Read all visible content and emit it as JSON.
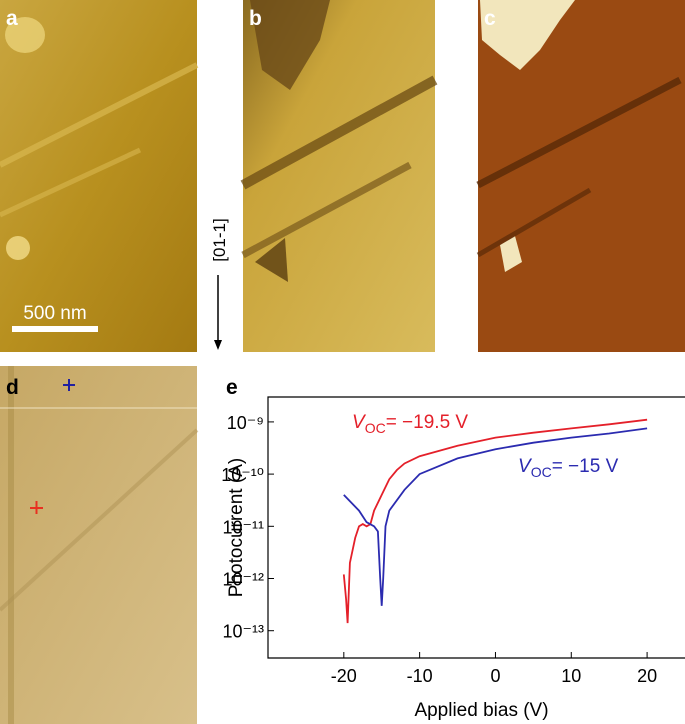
{
  "panels": {
    "labels": [
      "a",
      "b",
      "c",
      "d",
      "e"
    ],
    "scale_bar": "500 nm",
    "direction": "[01-1]"
  },
  "chart_data": {
    "type": "line",
    "xlabel": "Applied bias (V)",
    "ylabel": "Photocurrent (A)",
    "xlim": [
      -30,
      25
    ],
    "xticks": [
      -20,
      -10,
      0,
      10,
      20
    ],
    "ylim": [
      3e-14,
      3e-09
    ],
    "log_y": true,
    "yticks": [
      {
        "value": 1e-09,
        "label": "10⁻⁹"
      },
      {
        "value": 1e-10,
        "label": "10⁻¹⁰"
      },
      {
        "value": 1e-11,
        "label": "10⁻¹¹"
      },
      {
        "value": 1e-12,
        "label": "10⁻¹²"
      },
      {
        "value": 1e-13,
        "label": "10⁻¹³"
      }
    ],
    "annotations": [
      {
        "text": "V",
        "sub": "OC",
        "rest": "= −19.5 V",
        "color": "#e4202a"
      },
      {
        "text": "V",
        "sub": "OC",
        "rest": "= −15 V",
        "color": "#2b2bb0"
      }
    ],
    "series": [
      {
        "color": "#e4202a",
        "x": [
          -20,
          -19.7,
          -19.5,
          -19.2,
          -18.5,
          -18,
          -17.5,
          -17,
          -16.5,
          -16,
          -15,
          -14,
          -13,
          -12,
          -10,
          -5,
          0,
          5,
          10,
          15,
          20
        ],
        "values": [
          1.2e-12,
          4e-13,
          1.4e-13,
          2e-12,
          6e-12,
          1e-11,
          1.1e-11,
          1e-11,
          1.1e-11,
          2e-11,
          4e-11,
          8e-11,
          1.2e-10,
          1.6e-10,
          2.2e-10,
          3.5e-10,
          5e-10,
          6.2e-10,
          7.5e-10,
          9e-10,
          1.1e-09
        ]
      },
      {
        "color": "#2b2bb0",
        "x": [
          -20,
          -18,
          -17,
          -16,
          -15.5,
          -15.2,
          -15,
          -14.8,
          -14.5,
          -14,
          -12,
          -10,
          -5,
          0,
          5,
          10,
          15,
          20
        ],
        "values": [
          4e-11,
          2e-11,
          1.2e-11,
          1e-11,
          8e-12,
          1e-12,
          3e-13,
          1e-12,
          1e-11,
          2e-11,
          5e-11,
          1e-10,
          2e-10,
          3e-10,
          4e-10,
          5e-10,
          6e-10,
          7.5e-10
        ]
      }
    ]
  }
}
